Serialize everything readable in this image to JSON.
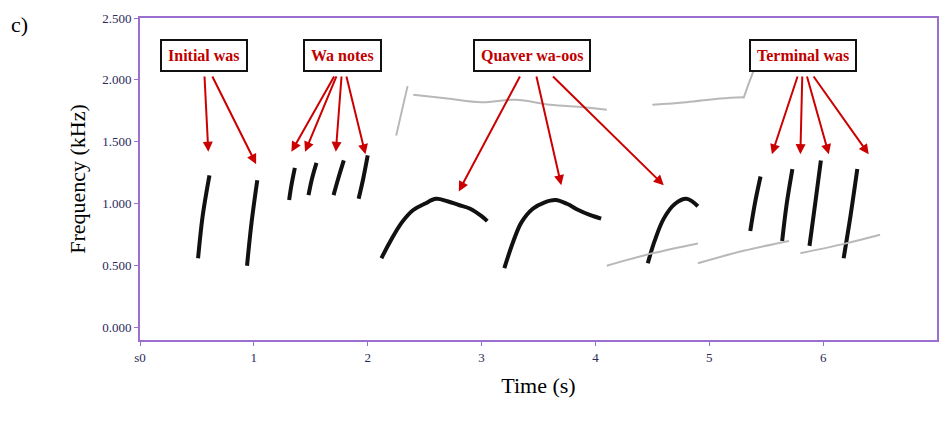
{
  "chart_data": {
    "type": "line",
    "panel_label": "c)",
    "xlabel": "Time (s)",
    "ylabel": "Frequency (kHz)",
    "grid": false,
    "legend": false,
    "xlim": [
      0,
      7
    ],
    "xticks": [
      {
        "value": 0,
        "label": "s0"
      },
      1,
      2,
      3,
      4,
      5,
      6
    ],
    "ylim": [
      -0.1,
      2.5
    ],
    "yticks": [
      {
        "value": 0,
        "label": "0.000"
      },
      {
        "value": 0.5,
        "label": "0.500"
      },
      {
        "value": 1,
        "label": "1.000"
      },
      {
        "value": 1.5,
        "label": "1.500"
      },
      {
        "value": 2,
        "label": "2.000"
      },
      {
        "value": 2.5,
        "label": "2.500"
      }
    ],
    "series": [
      {
        "color": "#111111",
        "segments": [
          {
            "x": [
              0.51,
              0.55,
              0.61
            ],
            "y": [
              0.56,
              0.9,
              1.23
            ]
          },
          {
            "x": [
              0.94,
              0.98,
              1.03
            ],
            "y": [
              0.5,
              0.85,
              1.19
            ]
          },
          {
            "x": [
              1.31,
              1.33,
              1.36
            ],
            "y": [
              1.03,
              1.15,
              1.29
            ]
          },
          {
            "x": [
              1.48,
              1.51,
              1.55
            ],
            "y": [
              1.07,
              1.2,
              1.33
            ]
          },
          {
            "x": [
              1.7,
              1.74,
              1.79
            ],
            "y": [
              1.07,
              1.2,
              1.35
            ]
          },
          {
            "x": [
              1.92,
              1.96,
              2.0
            ],
            "y": [
              1.04,
              1.2,
              1.39
            ]
          },
          {
            "x": [
              2.12,
              2.2,
              2.3,
              2.4,
              2.5,
              2.6,
              2.7,
              2.8,
              2.9,
              3.0,
              3.05
            ],
            "y": [
              0.56,
              0.7,
              0.85,
              0.95,
              1.0,
              1.04,
              1.02,
              0.99,
              0.96,
              0.9,
              0.86
            ]
          },
          {
            "x": [
              3.2,
              3.28,
              3.35,
              3.45,
              3.55,
              3.65,
              3.75,
              3.85,
              3.95,
              4.05
            ],
            "y": [
              0.48,
              0.7,
              0.85,
              0.96,
              1.01,
              1.03,
              1.0,
              0.95,
              0.91,
              0.88
            ]
          },
          {
            "x": [
              4.46,
              4.52,
              4.6,
              4.7,
              4.8,
              4.9
            ],
            "y": [
              0.52,
              0.7,
              0.88,
              1.0,
              1.04,
              0.98
            ]
          },
          {
            "x": [
              5.36,
              5.4,
              5.45
            ],
            "y": [
              0.78,
              1.0,
              1.22
            ]
          },
          {
            "x": [
              5.64,
              5.68,
              5.73
            ],
            "y": [
              0.7,
              1.0,
              1.28
            ]
          },
          {
            "x": [
              5.88,
              5.93,
              5.98
            ],
            "y": [
              0.66,
              1.0,
              1.35
            ]
          },
          {
            "x": [
              6.18,
              6.24,
              6.3
            ],
            "y": [
              0.56,
              0.9,
              1.28
            ]
          }
        ]
      },
      {
        "color": "#b8b8b8",
        "segments": [
          {
            "x": [
              2.25,
              2.3,
              2.35
            ],
            "y": [
              1.55,
              1.75,
              1.95
            ]
          },
          {
            "x": [
              2.4,
              2.7,
              3.0,
              3.3,
              3.6,
              3.9,
              4.1
            ],
            "y": [
              1.88,
              1.85,
              1.82,
              1.84,
              1.8,
              1.78,
              1.76
            ]
          },
          {
            "x": [
              4.5,
              4.8,
              5.1,
              5.3
            ],
            "y": [
              1.8,
              1.82,
              1.85,
              1.86
            ]
          },
          {
            "x": [
              5.3,
              5.35,
              5.4
            ],
            "y": [
              1.85,
              1.98,
              2.1
            ]
          },
          {
            "x": [
              4.1,
              4.5,
              4.9
            ],
            "y": [
              0.5,
              0.6,
              0.68
            ]
          },
          {
            "x": [
              4.9,
              5.3,
              5.7
            ],
            "y": [
              0.52,
              0.62,
              0.7
            ]
          },
          {
            "x": [
              5.8,
              6.2,
              6.5
            ],
            "y": [
              0.6,
              0.68,
              0.75
            ]
          }
        ]
      }
    ],
    "annotations": [
      {
        "text": "Initial was",
        "x": 0.56,
        "y": 2.2,
        "points": [
          [
            0.6,
            1.42
          ],
          [
            1.02,
            1.32
          ]
        ]
      },
      {
        "text": "Wa notes",
        "x": 1.78,
        "y": 2.2,
        "points": [
          [
            1.33,
            1.42
          ],
          [
            1.45,
            1.42
          ],
          [
            1.72,
            1.42
          ],
          [
            1.98,
            1.4
          ]
        ]
      },
      {
        "text": "Quaver wa-oos",
        "x": 3.44,
        "y": 2.2,
        "points": [
          [
            2.8,
            1.1
          ],
          [
            3.7,
            1.15
          ],
          [
            4.6,
            1.15
          ]
        ]
      },
      {
        "text": "Terminal was",
        "x": 5.82,
        "y": 2.2,
        "points": [
          [
            5.55,
            1.4
          ],
          [
            5.8,
            1.4
          ],
          [
            6.05,
            1.4
          ],
          [
            6.4,
            1.4
          ]
        ]
      }
    ]
  }
}
